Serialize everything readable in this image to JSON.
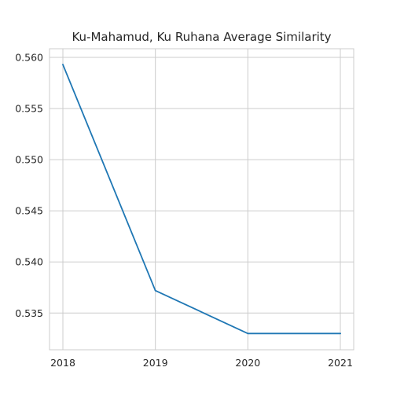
{
  "chart_data": {
    "type": "line",
    "title": "Ku-Mahamud, Ku Ruhana Average Similarity",
    "xlabel": "",
    "ylabel": "",
    "x": [
      "2018",
      "2019",
      "2020",
      "2021"
    ],
    "series": [
      {
        "values": [
          0.5593,
          0.5372,
          0.533,
          0.533
        ],
        "color": "#1f77b4"
      }
    ],
    "yticks": [
      0.535,
      0.54,
      0.545,
      0.55,
      0.555,
      0.56
    ],
    "ytick_labels": [
      "0.535",
      "0.540",
      "0.545",
      "0.550",
      "0.555",
      "0.560"
    ],
    "ylim": [
      0.53141,
      0.56085
    ],
    "grid": true,
    "style": "whitegrid"
  }
}
